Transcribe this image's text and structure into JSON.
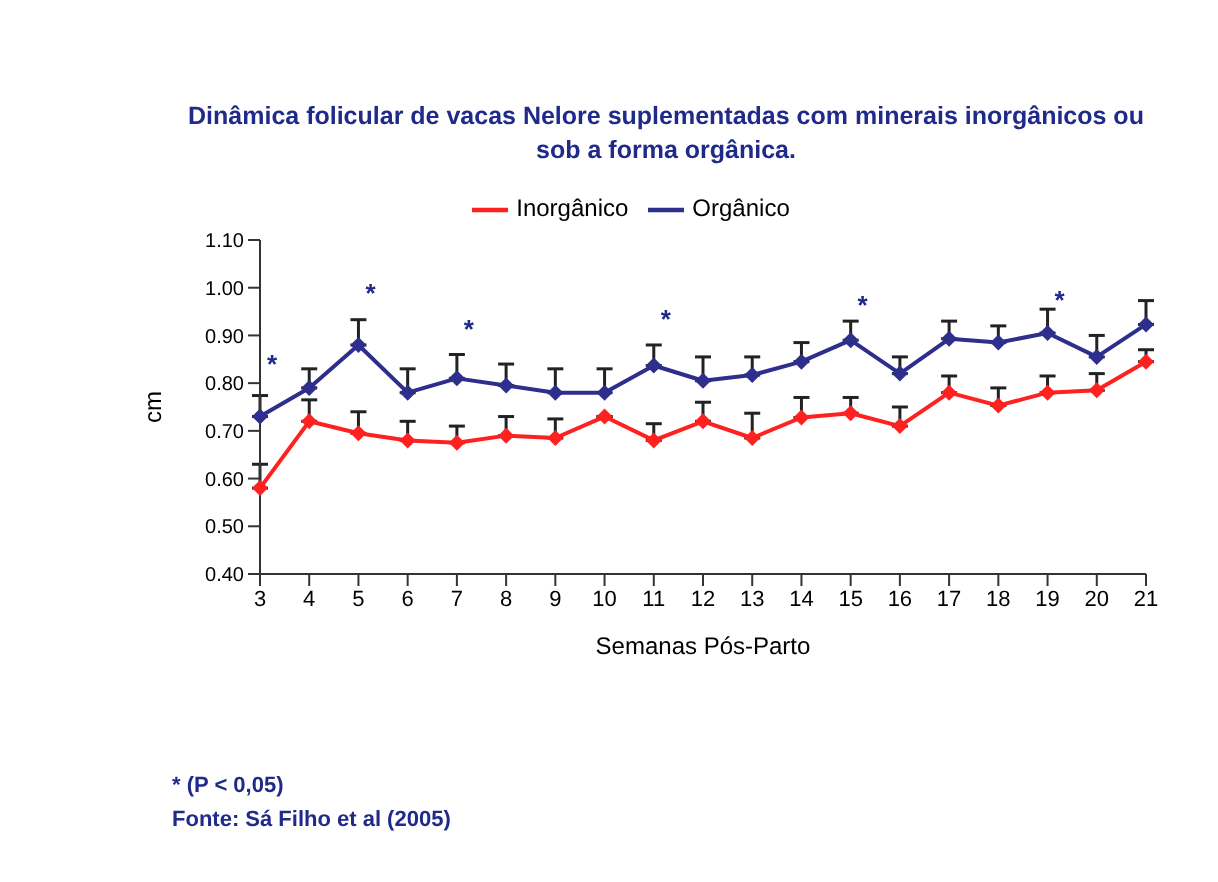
{
  "chart_data": {
    "type": "line",
    "title": "Dinâmica folicular de vacas Nelore suplementadas com minerais inorgânicos ou sob a forma orgânica.",
    "xlabel": "Semanas Pós-Parto",
    "ylabel": "cm",
    "categories": [
      "3",
      "4",
      "5",
      "6",
      "7",
      "8",
      "9",
      "10",
      "11",
      "12",
      "13",
      "14",
      "15",
      "16",
      "17",
      "18",
      "19",
      "20",
      "21"
    ],
    "series": [
      {
        "name": "Inorgânico",
        "color": "#ff2020",
        "values": [
          0.58,
          0.72,
          0.695,
          0.68,
          0.675,
          0.69,
          0.685,
          0.73,
          0.68,
          0.72,
          0.685,
          0.728,
          0.737,
          0.71,
          0.78,
          0.753,
          0.78,
          0.785,
          0.845
        ],
        "errors": [
          [
            0.58,
            0.63
          ],
          [
            0.72,
            0.765
          ],
          [
            0.695,
            0.74
          ],
          [
            0.68,
            0.72
          ],
          [
            0.675,
            0.71
          ],
          [
            0.69,
            0.73
          ],
          [
            0.685,
            0.725
          ],
          null,
          [
            0.68,
            0.715
          ],
          [
            0.72,
            0.76
          ],
          [
            0.685,
            0.737
          ],
          [
            0.728,
            0.77
          ],
          [
            0.737,
            0.77
          ],
          [
            0.71,
            0.75
          ],
          [
            0.78,
            0.815
          ],
          [
            0.753,
            0.79
          ],
          [
            0.78,
            0.815
          ],
          [
            0.785,
            0.82
          ],
          [
            0.845,
            0.87
          ]
        ]
      },
      {
        "name": "Orgânico",
        "color": "#2e2e8c",
        "values": [
          0.73,
          0.79,
          0.88,
          0.78,
          0.81,
          0.795,
          0.78,
          0.78,
          0.837,
          0.805,
          0.817,
          0.845,
          0.89,
          0.82,
          0.893,
          0.885,
          0.905,
          0.855,
          0.923
        ],
        "errors": [
          [
            0.73,
            0.774
          ],
          [
            0.79,
            0.83
          ],
          [
            0.88,
            0.933
          ],
          [
            0.78,
            0.83
          ],
          [
            0.81,
            0.86
          ],
          [
            0.795,
            0.84
          ],
          [
            0.78,
            0.83
          ],
          [
            0.78,
            0.83
          ],
          [
            0.837,
            0.88
          ],
          [
            0.805,
            0.855
          ],
          [
            0.817,
            0.855
          ],
          [
            0.845,
            0.885
          ],
          [
            0.89,
            0.93
          ],
          [
            0.82,
            0.855
          ],
          [
            0.893,
            0.93
          ],
          [
            0.885,
            0.92
          ],
          [
            0.905,
            0.955
          ],
          [
            0.855,
            0.9
          ],
          [
            0.923,
            0.973
          ]
        ]
      }
    ],
    "ylim": [
      0.4,
      1.1
    ],
    "yticks": [
      {
        "value": 0.4,
        "label": "0.40"
      },
      {
        "value": 0.5,
        "label": "0.50"
      },
      {
        "value": 0.6,
        "label": "0.60"
      },
      {
        "value": 0.7,
        "label": "0.70"
      },
      {
        "value": 0.8,
        "label": "0.80"
      },
      {
        "value": 0.9,
        "label": "0.90"
      },
      {
        "value": 1.0,
        "label": "1.00"
      },
      {
        "value": 1.1,
        "label": "1.10"
      }
    ],
    "grid": false,
    "legend": "top",
    "marker": "diamond",
    "line_style": "solid",
    "annotations": [
      "*",
      "*",
      "*",
      "*",
      "*",
      "*",
      "* (P < 0,05)",
      "Fonte: Sá Filho et al (2005)"
    ]
  }
}
